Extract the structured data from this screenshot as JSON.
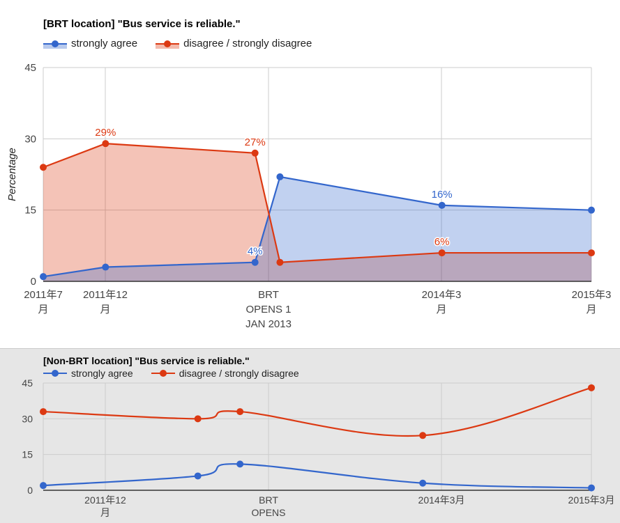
{
  "colors": {
    "agree": "#3366cc",
    "disagree": "#dc3912",
    "grid": "#cccccc",
    "axis": "#333333"
  },
  "chart_data": [
    {
      "type": "area",
      "title": "[BRT location] \"Bus service is reliable.\"",
      "ylabel": "Percentage",
      "ylim": [
        0,
        45
      ],
      "yticks": [
        "45",
        "30",
        "15",
        "0"
      ],
      "legend_position": "top",
      "x_labels": [
        [
          "2011年7",
          "月"
        ],
        [
          "2011年12",
          "月"
        ],
        [
          "BRT",
          "OPENS 1",
          "JAN 2013"
        ],
        [
          "2014年3",
          "月"
        ],
        [
          "2015年3",
          "月"
        ]
      ],
      "series": [
        {
          "name": "strongly agree",
          "x": [
            "2011-07",
            "2011-12",
            "2012-12",
            "2013-02",
            "2014-03",
            "2015-03"
          ],
          "values": [
            1,
            3,
            4,
            22,
            16,
            15
          ],
          "labels": [
            "",
            "",
            "4%",
            "",
            "16%",
            ""
          ]
        },
        {
          "name": "disagree / strongly disagree",
          "x": [
            "2011-07",
            "2011-12",
            "2012-12",
            "2013-02",
            "2014-03",
            "2015-03"
          ],
          "values": [
            24,
            29,
            27,
            4,
            6,
            6
          ],
          "labels": [
            "",
            "29%",
            "27%",
            "",
            "6%",
            ""
          ]
        }
      ]
    },
    {
      "type": "line",
      "title": "[Non-BRT location] \"Bus service is reliable.\"",
      "ylim": [
        0,
        45
      ],
      "yticks": [
        "45",
        "30",
        "15",
        "0"
      ],
      "legend_position": "top",
      "x_labels": [
        [
          "2011年12",
          "月"
        ],
        [
          "BRT",
          "OPENS"
        ],
        [
          "2014年3月"
        ],
        [
          "2015年3月"
        ]
      ],
      "series": [
        {
          "name": "strongly agree",
          "x": [
            "2011-12",
            "2012-11",
            "2013-02",
            "2014-03",
            "2015-03"
          ],
          "values": [
            2,
            6,
            11,
            3,
            1
          ]
        },
        {
          "name": "disagree / strongly disagree",
          "x": [
            "2011-12",
            "2012-11",
            "2013-02",
            "2014-03",
            "2015-03"
          ],
          "values": [
            33,
            30,
            33,
            23,
            43
          ]
        }
      ]
    }
  ]
}
